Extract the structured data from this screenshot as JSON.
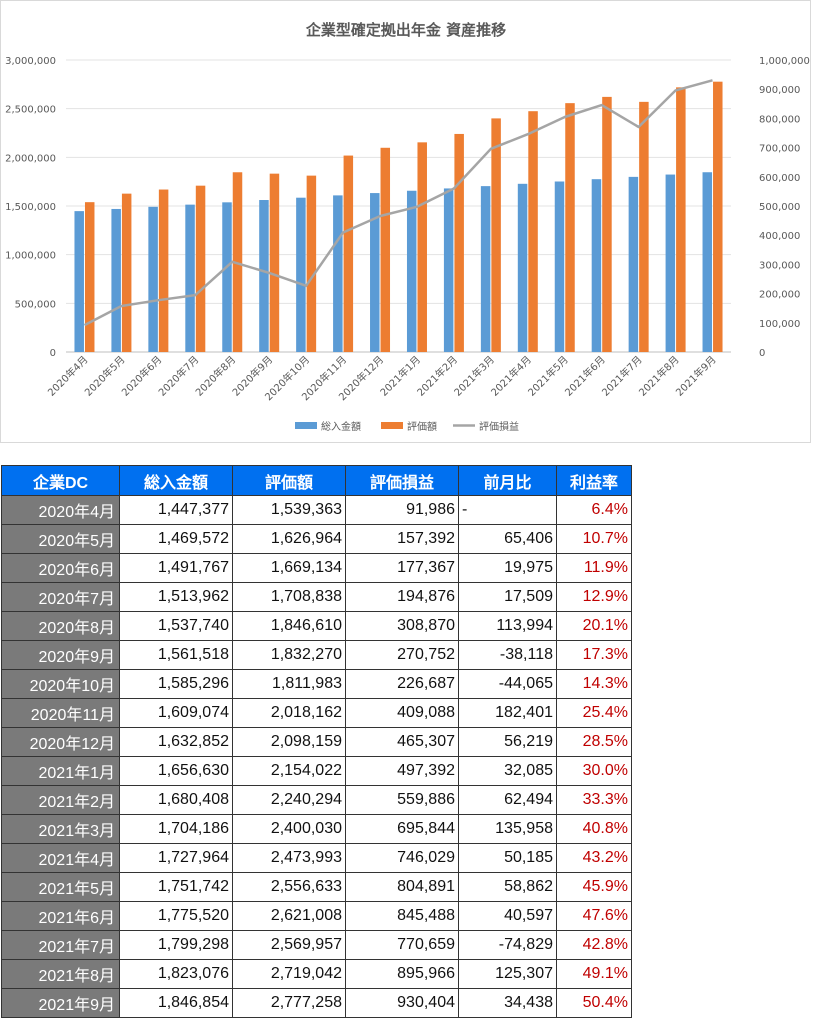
{
  "chart_data": {
    "type": "bar",
    "title": "企業型確定拠出年金 資産推移",
    "categories": [
      "2020年4月",
      "2020年5月",
      "2020年6月",
      "2020年7月",
      "2020年8月",
      "2020年9月",
      "2020年10月",
      "2020年11月",
      "2020年12月",
      "2021年1月",
      "2021年2月",
      "2021年3月",
      "2021年4月",
      "2021年5月",
      "2021年6月",
      "2021年7月",
      "2021年8月",
      "2021年9月"
    ],
    "series": [
      {
        "name": "総入金額",
        "type": "bar",
        "axis": "left",
        "color": "#5b9bd5",
        "values": [
          1447377,
          1469572,
          1491767,
          1513962,
          1537740,
          1561518,
          1585296,
          1609074,
          1632852,
          1656630,
          1680408,
          1704186,
          1727964,
          1751742,
          1775520,
          1799298,
          1823076,
          1846854
        ]
      },
      {
        "name": "評価額",
        "type": "bar",
        "axis": "left",
        "color": "#ed7d31",
        "values": [
          1539363,
          1626964,
          1669134,
          1708838,
          1846610,
          1832270,
          1811983,
          2018162,
          2098159,
          2154022,
          2240294,
          2400030,
          2473993,
          2556633,
          2621008,
          2569957,
          2719042,
          2777258
        ]
      },
      {
        "name": "評価損益",
        "type": "line",
        "axis": "right",
        "color": "#a5a5a5",
        "values": [
          91986,
          157392,
          177367,
          194876,
          308870,
          270752,
          226687,
          409088,
          465307,
          497392,
          559886,
          695844,
          746029,
          804891,
          845488,
          770659,
          895966,
          930404
        ]
      }
    ],
    "ylim": [
      0,
      3000000
    ],
    "y2lim": [
      0,
      1000000
    ],
    "yticks": [
      "0",
      "500,000",
      "1,000,000",
      "1,500,000",
      "2,000,000",
      "2,500,000",
      "3,000,000"
    ],
    "y2ticks": [
      "0",
      "100,000",
      "200,000",
      "300,000",
      "400,000",
      "500,000",
      "600,000",
      "700,000",
      "800,000",
      "900,000",
      "1,000,000"
    ],
    "grid": true,
    "legend": "bottom"
  },
  "table": {
    "headers": [
      "企業DC",
      "総入金額",
      "評価額",
      "評価損益",
      "前月比",
      "利益率"
    ],
    "rows": [
      [
        "2020年4月",
        "1,447,377",
        "1,539,363",
        "91,986",
        "-",
        "6.4%"
      ],
      [
        "2020年5月",
        "1,469,572",
        "1,626,964",
        "157,392",
        "65,406",
        "10.7%"
      ],
      [
        "2020年6月",
        "1,491,767",
        "1,669,134",
        "177,367",
        "19,975",
        "11.9%"
      ],
      [
        "2020年7月",
        "1,513,962",
        "1,708,838",
        "194,876",
        "17,509",
        "12.9%"
      ],
      [
        "2020年8月",
        "1,537,740",
        "1,846,610",
        "308,870",
        "113,994",
        "20.1%"
      ],
      [
        "2020年9月",
        "1,561,518",
        "1,832,270",
        "270,752",
        "-38,118",
        "17.3%"
      ],
      [
        "2020年10月",
        "1,585,296",
        "1,811,983",
        "226,687",
        "-44,065",
        "14.3%"
      ],
      [
        "2020年11月",
        "1,609,074",
        "2,018,162",
        "409,088",
        "182,401",
        "25.4%"
      ],
      [
        "2020年12月",
        "1,632,852",
        "2,098,159",
        "465,307",
        "56,219",
        "28.5%"
      ],
      [
        "2021年1月",
        "1,656,630",
        "2,154,022",
        "497,392",
        "32,085",
        "30.0%"
      ],
      [
        "2021年2月",
        "1,680,408",
        "2,240,294",
        "559,886",
        "62,494",
        "33.3%"
      ],
      [
        "2021年3月",
        "1,704,186",
        "2,400,030",
        "695,844",
        "135,958",
        "40.8%"
      ],
      [
        "2021年4月",
        "1,727,964",
        "2,473,993",
        "746,029",
        "50,185",
        "43.2%"
      ],
      [
        "2021年5月",
        "1,751,742",
        "2,556,633",
        "804,891",
        "58,862",
        "45.9%"
      ],
      [
        "2021年6月",
        "1,775,520",
        "2,621,008",
        "845,488",
        "40,597",
        "47.6%"
      ],
      [
        "2021年7月",
        "1,799,298",
        "2,569,957",
        "770,659",
        "-74,829",
        "42.8%"
      ],
      [
        "2021年8月",
        "1,823,076",
        "2,719,042",
        "895,966",
        "125,307",
        "49.1%"
      ],
      [
        "2021年9月",
        "1,846,854",
        "2,777,258",
        "930,404",
        "34,438",
        "50.4%"
      ]
    ]
  }
}
